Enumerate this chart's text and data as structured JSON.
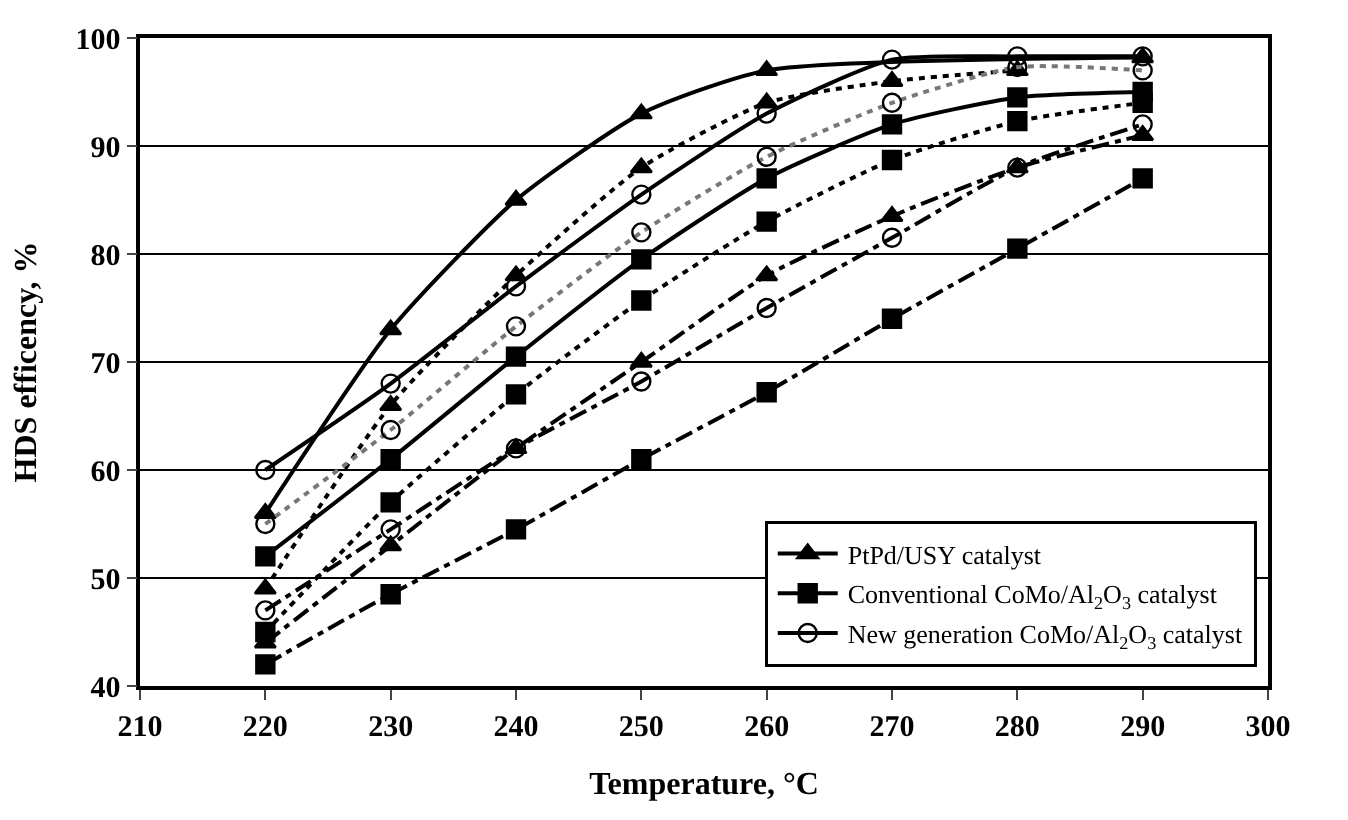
{
  "chart_data": {
    "type": "line",
    "xlabel": "Temperature, °C",
    "ylabel": "HDS efficency, %",
    "x": [
      220,
      230,
      240,
      250,
      260,
      270,
      280,
      290
    ],
    "series": [
      {
        "name": "PtPd/USY catalyst",
        "color": "#000000",
        "marker": "triangle",
        "line_style": "solid",
        "values": [
          56,
          73,
          85,
          93,
          97,
          null,
          null,
          98.2
        ]
      },
      {
        "color": "#000000",
        "marker": "triangle",
        "line_style": "dotted",
        "values": [
          49,
          66,
          78,
          88,
          94,
          96,
          97,
          null
        ]
      },
      {
        "color": "#000000",
        "marker": "triangle",
        "line_style": "dashdot",
        "values": [
          44,
          53,
          62,
          70,
          78,
          83.5,
          88,
          91
        ]
      },
      {
        "name": "Conventional CoMo/Al$_{2}$O$_{3}$ catalyst",
        "color": "#000000",
        "marker": "square",
        "line_style": "solid",
        "values": [
          52,
          61,
          70.5,
          79.5,
          87,
          92,
          94.5,
          95
        ]
      },
      {
        "color": "#000000",
        "marker": "square",
        "line_style": "dotted",
        "values": [
          45,
          57,
          67,
          75.7,
          83,
          88.7,
          92.3,
          94
        ]
      },
      {
        "color": "#000000",
        "marker": "square",
        "line_style": "dashdot",
        "values": [
          42,
          48.5,
          54.5,
          61,
          67.2,
          74,
          80.5,
          87
        ]
      },
      {
        "name": "New generation CoMo/Al$_{2}$O$_{3}$ catalyst",
        "color": "#000000",
        "marker": "circle-open",
        "line_style": "solid",
        "values": [
          60,
          68,
          77,
          85.5,
          93,
          98,
          98.3,
          98.3
        ]
      },
      {
        "color": "#777777",
        "marker": "circle-open",
        "line_style": "dotted",
        "values": [
          55,
          63.7,
          73.3,
          82,
          89,
          94,
          97.3,
          97
        ]
      },
      {
        "color": "#000000",
        "marker": "circle-open",
        "line_style": "dashdot",
        "values": [
          47,
          54.5,
          62,
          68.2,
          75,
          81.5,
          88,
          92
        ]
      }
    ],
    "xlim": [
      210,
      300
    ],
    "xticks": [
      210,
      220,
      230,
      240,
      250,
      260,
      270,
      280,
      290,
      300
    ],
    "ylim": [
      40,
      100
    ],
    "yticks": [
      40,
      50,
      60,
      70,
      80,
      90,
      100
    ],
    "grid": "y",
    "legend": "bottom right"
  }
}
